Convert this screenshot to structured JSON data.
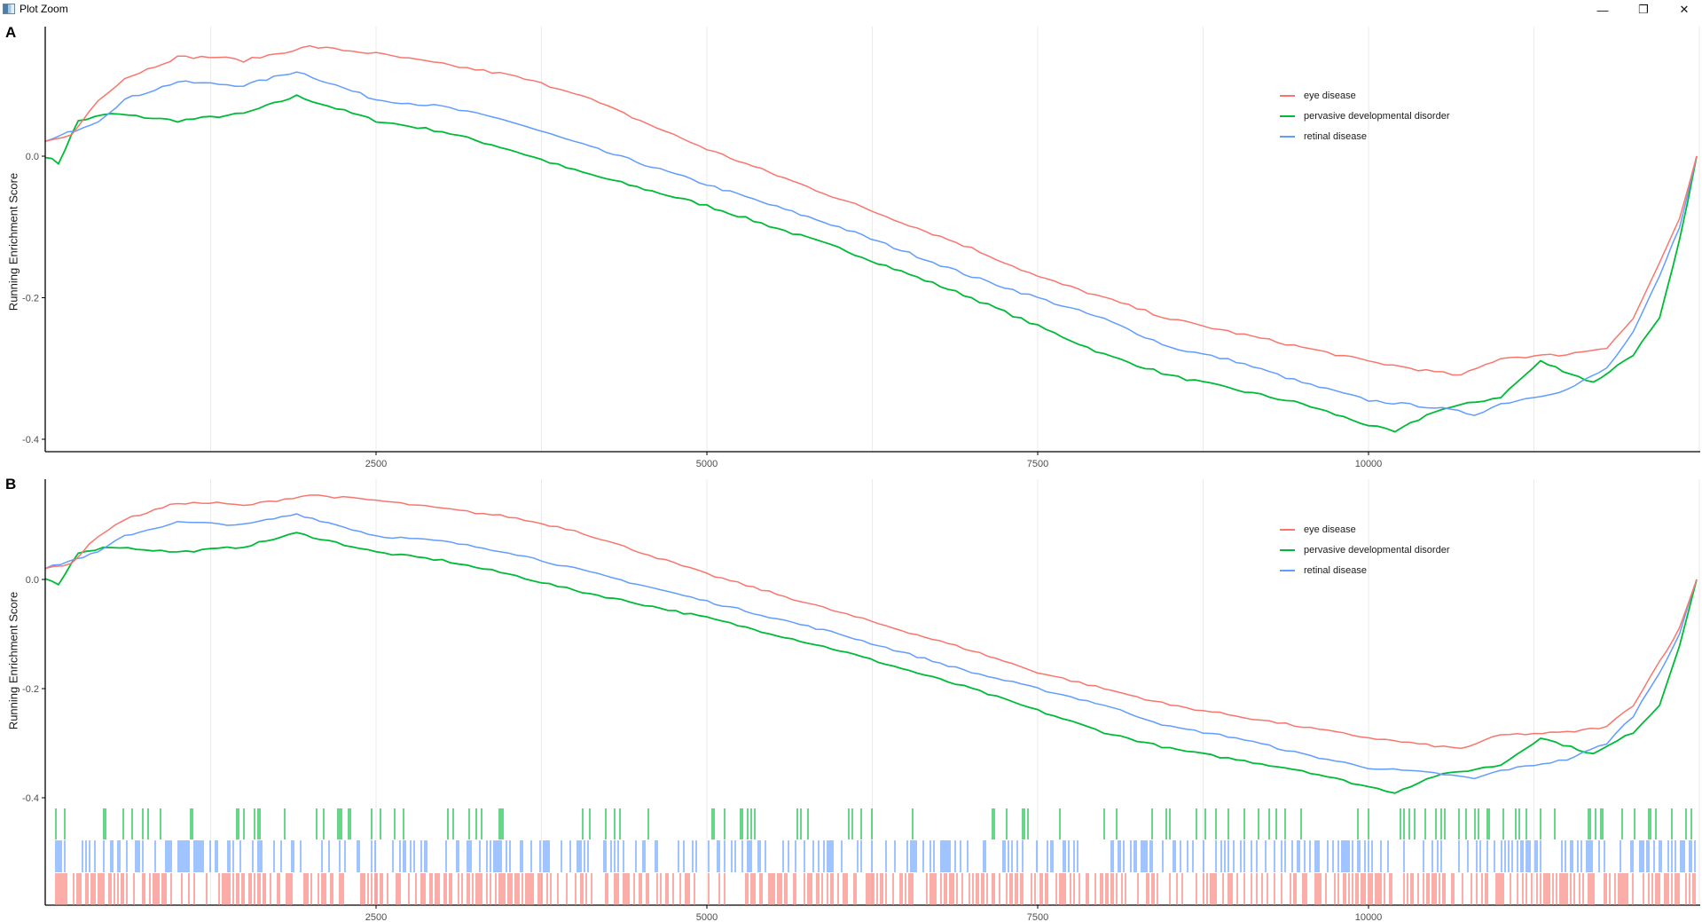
{
  "window": {
    "title": "Plot Zoom",
    "controls": {
      "minimize": "—",
      "restore": "❐",
      "close": "✕"
    }
  },
  "colors": {
    "eye_disease": "#F8766D",
    "pervasive_developmental_disorder": "#00BA38",
    "retinal_disease": "#619CFF",
    "axis": "#000000",
    "grid": "#EBEBEB",
    "tick_label": "#4D4D4D"
  },
  "panels": [
    {
      "letter": "A",
      "ylabel": "Running Enrichment Score"
    },
    {
      "letter": "B",
      "ylabel": "Running Enrichment Score"
    }
  ],
  "legend": [
    {
      "label": "eye disease",
      "key": "eye_disease"
    },
    {
      "label": "pervasive developmental disorder",
      "key": "pervasive_developmental_disorder"
    },
    {
      "label": "retinal disease",
      "key": "retinal_disease"
    }
  ],
  "chart_data": [
    {
      "panel": "A",
      "type": "line",
      "title": "",
      "xlabel": "",
      "ylabel": "Running Enrichment Score",
      "xlim": [
        0,
        12480
      ],
      "ylim": [
        -0.41,
        0.18
      ],
      "x_ticks": [
        2500,
        5000,
        7500,
        10000
      ],
      "y_ticks": [
        0.0,
        -0.2,
        -0.4
      ],
      "y_tick_labels": [
        "0.0",
        "-0.2",
        "-0.4"
      ],
      "grid": "vertical major and minor lines",
      "legend_position": "inside top-right",
      "series": [
        {
          "name": "eye disease",
          "color": "#F8766D",
          "x": [
            0,
            200,
            400,
            600,
            1000,
            1300,
            1500,
            2000,
            2500,
            3000,
            3500,
            4000,
            4500,
            5000,
            6000,
            7000,
            7500,
            8000,
            8500,
            9000,
            9500,
            10000,
            10500,
            10700,
            11000,
            11500,
            11800,
            12000,
            12200,
            12350,
            12480
          ],
          "y": [
            0.02,
            0.03,
            0.08,
            0.11,
            0.14,
            0.14,
            0.135,
            0.155,
            0.145,
            0.13,
            0.115,
            0.09,
            0.05,
            0.01,
            -0.06,
            -0.13,
            -0.17,
            -0.2,
            -0.23,
            -0.25,
            -0.27,
            -0.29,
            -0.305,
            -0.31,
            -0.285,
            -0.28,
            -0.27,
            -0.23,
            -0.15,
            -0.09,
            0.0
          ]
        },
        {
          "name": "pervasive developmental disorder",
          "color": "#00BA38",
          "x": [
            0,
            100,
            250,
            500,
            1000,
            1500,
            1900,
            2500,
            3000,
            3500,
            4000,
            5000,
            6000,
            7000,
            7500,
            8000,
            8500,
            9000,
            9500,
            10000,
            10200,
            10500,
            11000,
            11300,
            11700,
            12000,
            12200,
            12350,
            12480
          ],
          "y": [
            0.0,
            -0.01,
            0.05,
            0.06,
            0.05,
            0.06,
            0.085,
            0.05,
            0.035,
            0.01,
            -0.02,
            -0.07,
            -0.13,
            -0.2,
            -0.24,
            -0.28,
            -0.31,
            -0.33,
            -0.35,
            -0.38,
            -0.39,
            -0.36,
            -0.34,
            -0.29,
            -0.32,
            -0.28,
            -0.23,
            -0.12,
            0.0
          ]
        },
        {
          "name": "retinal disease",
          "color": "#619CFF",
          "x": [
            0,
            400,
            600,
            1000,
            1500,
            1900,
            2500,
            3000,
            3500,
            4000,
            5000,
            6000,
            7000,
            7500,
            8000,
            8500,
            9000,
            9500,
            10000,
            10500,
            10800,
            11000,
            11500,
            11800,
            12000,
            12200,
            12350,
            12480
          ],
          "y": [
            0.02,
            0.05,
            0.08,
            0.105,
            0.1,
            0.12,
            0.08,
            0.07,
            0.05,
            0.02,
            -0.04,
            -0.1,
            -0.17,
            -0.2,
            -0.23,
            -0.27,
            -0.29,
            -0.32,
            -0.345,
            -0.355,
            -0.365,
            -0.35,
            -0.33,
            -0.3,
            -0.25,
            -0.17,
            -0.1,
            0.0
          ]
        }
      ]
    },
    {
      "panel": "B",
      "type": "line",
      "title": "",
      "xlabel": "",
      "ylabel": "Running Enrichment Score",
      "xlim": [
        0,
        12480
      ],
      "ylim": [
        -0.6,
        0.18
      ],
      "x_ticks": [
        2500,
        5000,
        7500,
        10000
      ],
      "y_ticks": [
        0.0,
        -0.2,
        -0.4
      ],
      "y_tick_labels": [
        "0.0",
        "-0.2",
        "-0.4"
      ],
      "grid": "vertical major and minor lines",
      "legend_position": "inside top-right",
      "note": "same three running-score curves as panel A, plus gene-hit rug strips (green top, blue middle, red bottom) below -0.4",
      "rug_strips": [
        "pervasive developmental disorder",
        "retinal disease",
        "eye disease"
      ]
    }
  ]
}
